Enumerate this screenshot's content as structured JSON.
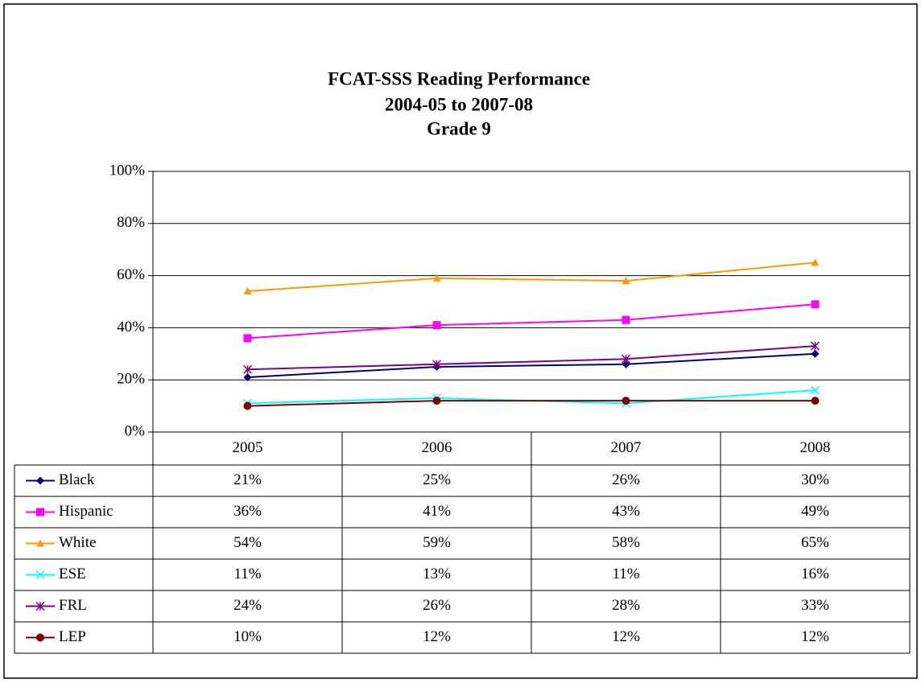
{
  "chart_data": {
    "type": "line",
    "title": [
      "FCAT-SSS Reading Performance",
      "2004-05 to 2007-08",
      "Grade 9"
    ],
    "categories": [
      "2005",
      "2006",
      "2007",
      "2008"
    ],
    "ylim": [
      0,
      100
    ],
    "yticks": [
      {
        "value": 0,
        "label": "0%"
      },
      {
        "value": 20,
        "label": "20%"
      },
      {
        "value": 40,
        "label": "40%"
      },
      {
        "value": 60,
        "label": "60%"
      },
      {
        "value": 80,
        "label": "80%"
      },
      {
        "value": 100,
        "label": "100%"
      }
    ],
    "grid": true,
    "series": [
      {
        "name": "Black",
        "color": "#000080",
        "marker": "diamond",
        "values": [
          21,
          25,
          26,
          30
        ],
        "value_labels": [
          "21%",
          "25%",
          "26%",
          "30%"
        ]
      },
      {
        "name": "Hispanic",
        "color": "#ff00ff",
        "marker": "square",
        "values": [
          36,
          41,
          43,
          49
        ],
        "value_labels": [
          "36%",
          "41%",
          "43%",
          "49%"
        ]
      },
      {
        "name": "White",
        "color": "#ff9900",
        "marker": "triangle",
        "values": [
          54,
          59,
          58,
          65
        ],
        "value_labels": [
          "54%",
          "59%",
          "58%",
          "65%"
        ]
      },
      {
        "name": "ESE",
        "color": "#00ffff",
        "marker": "x",
        "values": [
          11,
          13,
          11,
          16
        ],
        "value_labels": [
          "11%",
          "13%",
          "11%",
          "16%"
        ]
      },
      {
        "name": "FRL",
        "color": "#800080",
        "marker": "star",
        "values": [
          24,
          26,
          28,
          33
        ],
        "value_labels": [
          "24%",
          "26%",
          "28%",
          "33%"
        ]
      },
      {
        "name": "LEP",
        "color": "#800000",
        "marker": "circle",
        "values": [
          10,
          12,
          12,
          12
        ],
        "value_labels": [
          "10%",
          "12%",
          "12%",
          "12%"
        ]
      }
    ]
  }
}
